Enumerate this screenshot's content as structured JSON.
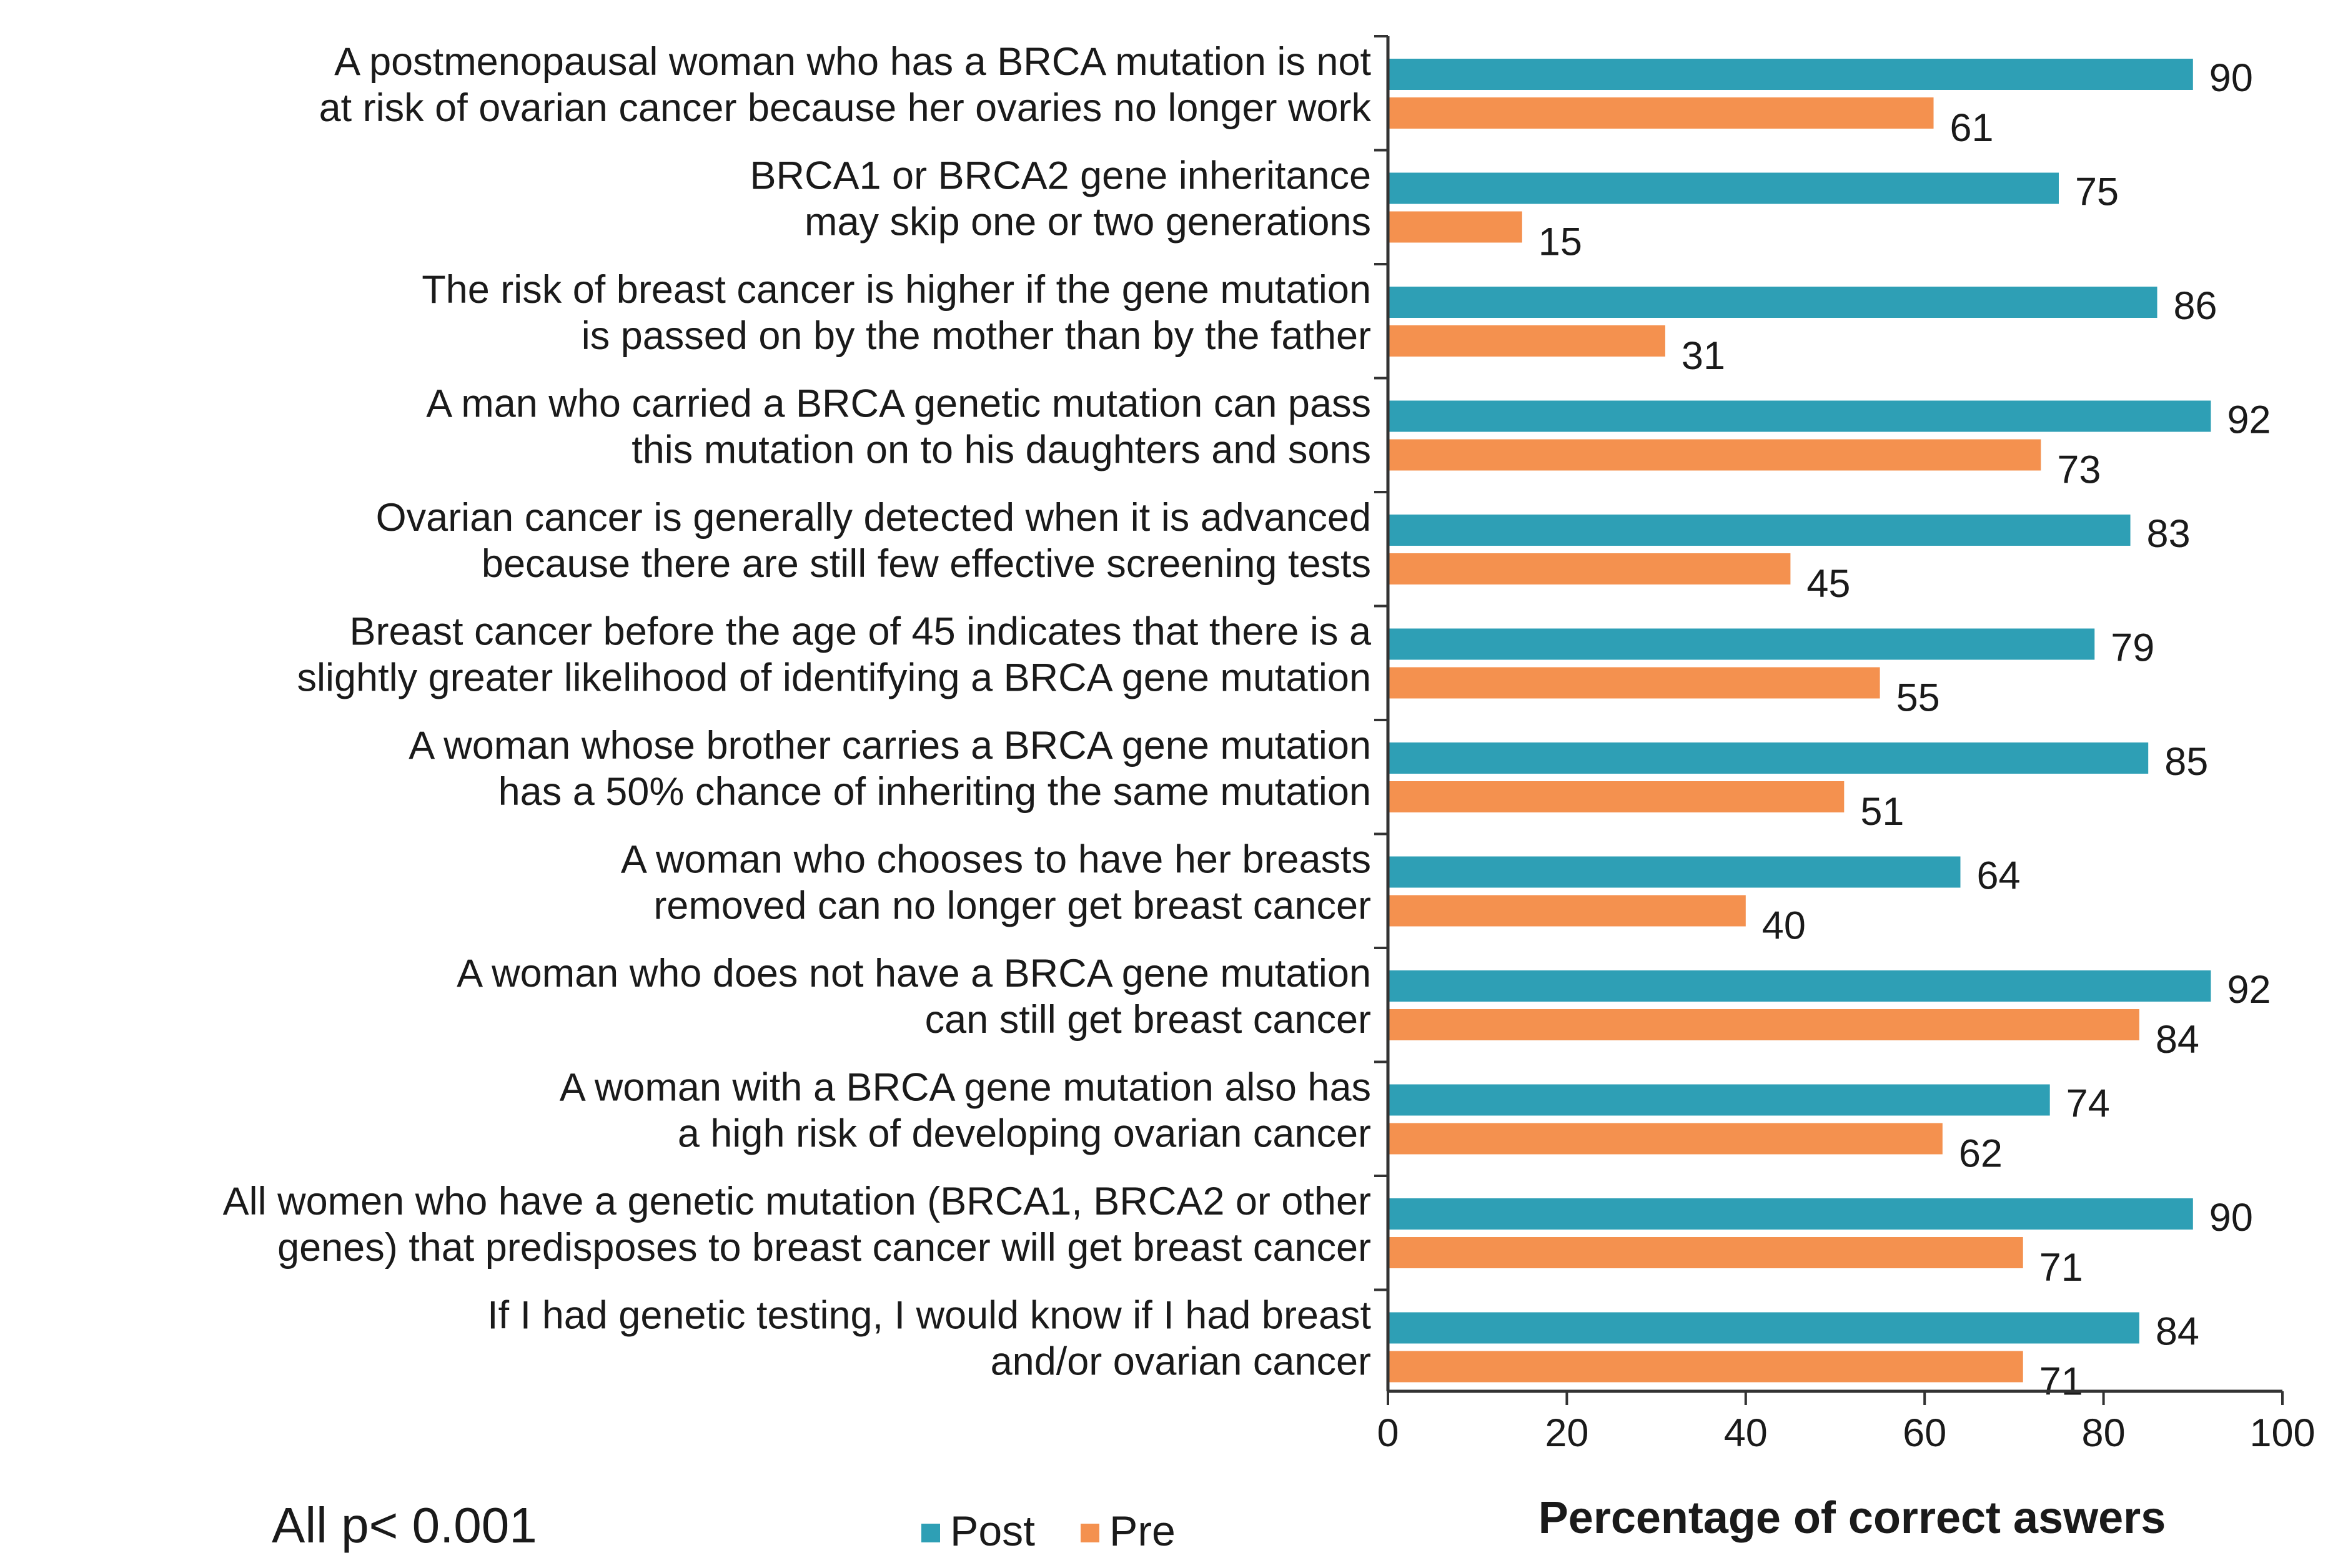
{
  "chart_data": {
    "type": "bar",
    "orientation": "horizontal",
    "categories": [
      [
        "A postmenopausal woman who has a BRCA mutation is not",
        "at risk of ovarian cancer because her ovaries no longer work"
      ],
      [
        "BRCA1 or BRCA2 gene inheritance",
        "may skip one or two generations"
      ],
      [
        "The risk of breast cancer is higher if the gene mutation",
        "is passed on by the mother than by the father"
      ],
      [
        "A man who carried a BRCA genetic mutation can pass",
        "this mutation on to his daughters and sons"
      ],
      [
        "Ovarian cancer is generally detected when it is advanced",
        "because there are still few effective screening tests"
      ],
      [
        "Breast cancer before the age of 45 indicates that there is a",
        "slightly greater likelihood of identifying a BRCA gene mutation"
      ],
      [
        "A woman whose brother carries a BRCA gene mutation",
        "has a 50% chance of inheriting the same mutation"
      ],
      [
        "A woman who chooses to have her breasts",
        "removed can no longer get breast cancer"
      ],
      [
        "A woman who does not have a BRCA gene mutation",
        "can still get breast cancer"
      ],
      [
        "A woman with a  BRCA gene mutation also has",
        "a high risk of developing ovarian cancer"
      ],
      [
        "All women who have a genetic mutation (BRCA1, BRCA2 or other",
        "genes) that predisposes to breast cancer will get breast cancer"
      ],
      [
        "If I had genetic testing, I would know if I had breast",
        "and/or ovarian cancer"
      ]
    ],
    "series": [
      {
        "name": "Post",
        "color": "#2e9fb5",
        "values": [
          90,
          75,
          86,
          92,
          83,
          79,
          85,
          64,
          92,
          74,
          90,
          84
        ]
      },
      {
        "name": "Pre",
        "color": "#f4914f",
        "values": [
          61,
          15,
          31,
          73,
          45,
          55,
          51,
          40,
          84,
          62,
          71,
          71
        ]
      }
    ],
    "xlim": [
      0,
      100
    ],
    "xticks": [
      0,
      20,
      40,
      60,
      80,
      100
    ],
    "xlabel": "Percentage of correct aswers",
    "note": "All p< 0.001",
    "legend": [
      "Post",
      "Pre"
    ]
  }
}
